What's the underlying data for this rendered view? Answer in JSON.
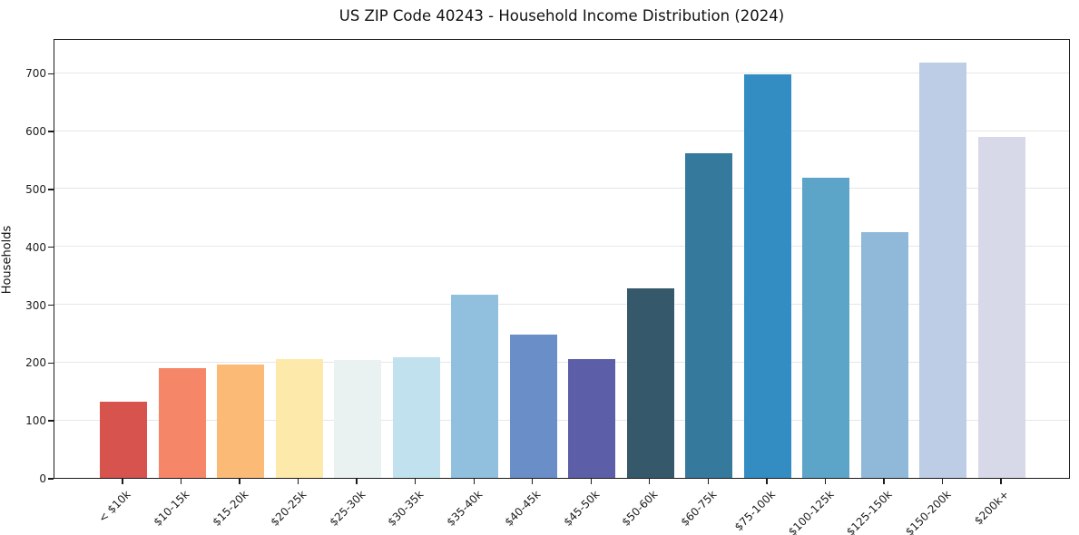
{
  "chart_data": {
    "type": "bar",
    "title": "US ZIP Code 40243 - Household Income Distribution (2024)",
    "xlabel": "",
    "ylabel": "Households",
    "categories": [
      "< $10k",
      "$10-15k",
      "$15-20k",
      "$20-25k",
      "$25-30k",
      "$30-35k",
      "$35-40k",
      "$40-45k",
      "$45-50k",
      "$50-60k",
      "$60-75k",
      "$75-100k",
      "$100-125k",
      "$125-150k",
      "$150-200k",
      "$200k+"
    ],
    "values": [
      131,
      190,
      196,
      205,
      203,
      208,
      316,
      248,
      205,
      327,
      561,
      697,
      519,
      425,
      718,
      590
    ],
    "bar_colors": [
      "#d6534e",
      "#f58768",
      "#fbbb77",
      "#fde9a9",
      "#e9f2f1",
      "#c0e1ed",
      "#90c0dd",
      "#6a8ec8",
      "#5c5fa7",
      "#35596b",
      "#357a9d",
      "#338dc3",
      "#5da4c9",
      "#90b8d8",
      "#bccde5",
      "#d8d9e8"
    ],
    "yticks": [
      0,
      100,
      200,
      300,
      400,
      500,
      600,
      700
    ],
    "ylim": [
      0,
      760
    ],
    "grid": true,
    "legend_position": "none",
    "colors": {
      "background": "#ffffff",
      "gridline": "#e6e6e6",
      "axis": "#1c1c1c",
      "text": "#111111"
    }
  }
}
